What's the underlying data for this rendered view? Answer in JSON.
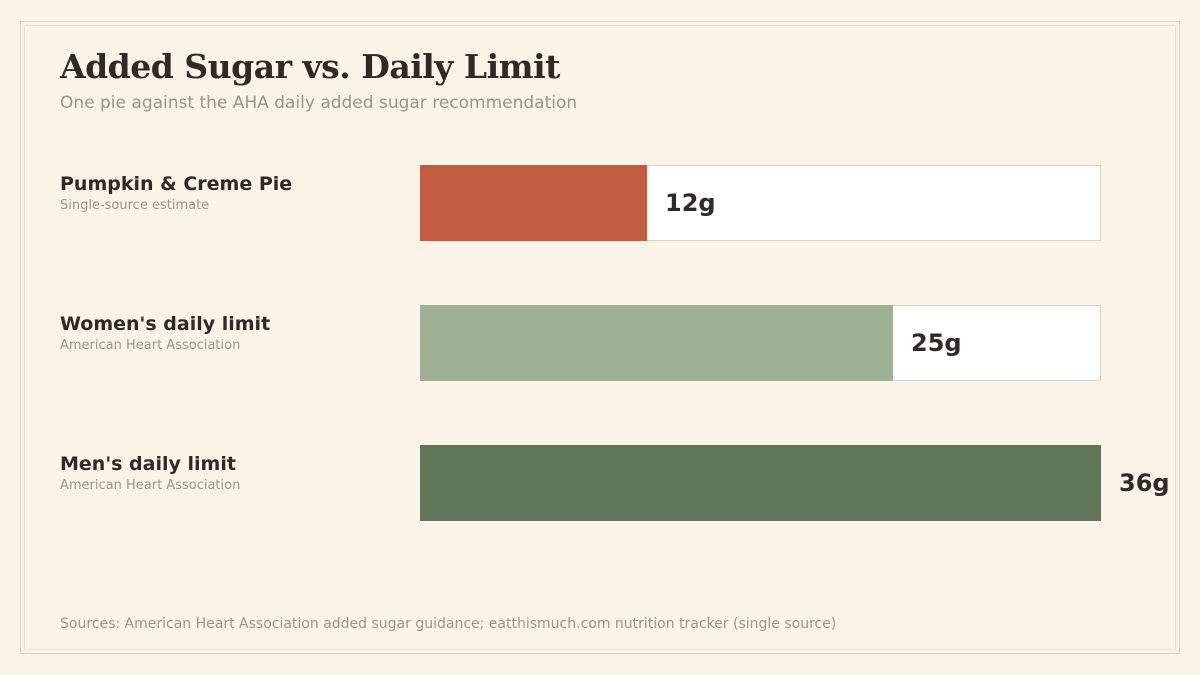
{
  "chart_data": {
    "type": "bar",
    "orientation": "horizontal",
    "title": "Added Sugar vs. Daily Limit",
    "subtitle": "One pie against the AHA daily added sugar recommendation",
    "categories": [
      "Pumpkin & Creme Pie",
      "Women's daily limit",
      "Men's daily limit"
    ],
    "sources": [
      "Single-source estimate",
      "American Heart Association",
      "American Heart Association"
    ],
    "values": [
      12,
      25,
      36
    ],
    "value_labels": [
      "12g",
      "25g",
      "36g"
    ],
    "unit": "g",
    "xlim": [
      0,
      36
    ],
    "colors": [
      "#c25d41",
      "#9fb194",
      "#617658"
    ],
    "track_color": "#ffffff",
    "grid": false,
    "legend": "none"
  },
  "footer": "Sources: American Heart Association added sugar guidance; eatthismuch.com nutrition tracker (single source)"
}
